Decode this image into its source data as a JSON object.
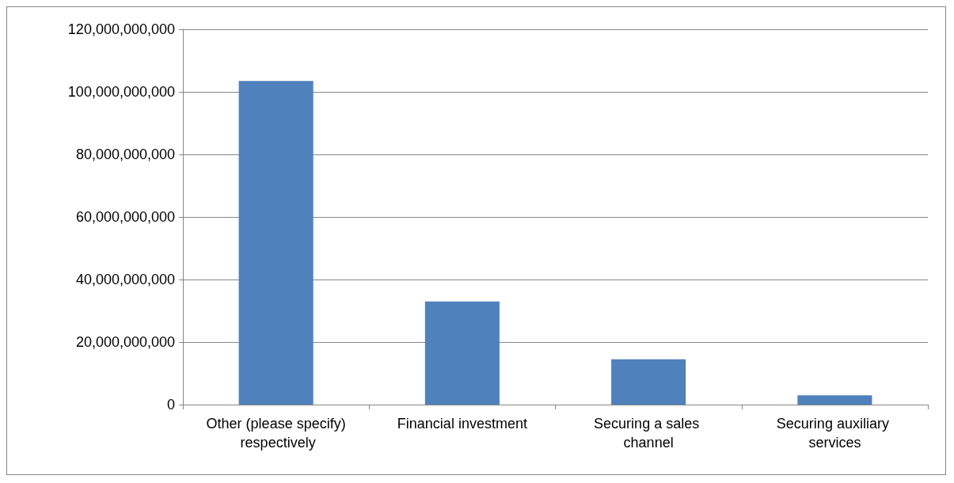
{
  "chart_data": {
    "type": "bar",
    "categories": [
      "Other (please specify) respectively",
      "Financial investment",
      "Securing a sales channel",
      "Securing auxiliary services"
    ],
    "values": [
      103500000000,
      33000000000,
      14500000000,
      3000000000
    ],
    "color": "#4f81bd",
    "ylim": [
      0,
      120000000000
    ],
    "yticks": [
      {
        "value": 0,
        "label": "0"
      },
      {
        "value": 20000000000,
        "label": "20,000,000,000"
      },
      {
        "value": 40000000000,
        "label": "40,000,000,000"
      },
      {
        "value": 60000000000,
        "label": "60,000,000,000"
      },
      {
        "value": 80000000000,
        "label": "80,000,000,000"
      },
      {
        "value": 100000000000,
        "label": "100,000,000,000"
      },
      {
        "value": 120000000000,
        "label": "120,000,000,000"
      }
    ],
    "grid": "y"
  }
}
